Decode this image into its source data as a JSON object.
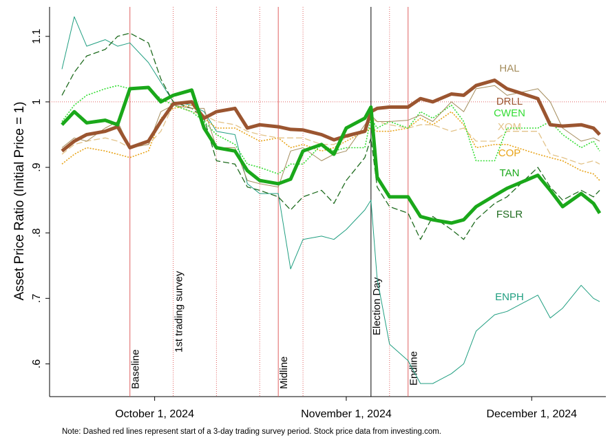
{
  "chart_data": {
    "type": "line",
    "y_label": "Asset Price Ratio (Initial Price = 1)",
    "note": "Note: Dashed red lines represent start of a 3-day trading survey period. Stock price data from investing.com.",
    "x": [
      "2024-09-16",
      "2024-09-18",
      "2024-09-20",
      "2024-09-23",
      "2024-09-25",
      "2024-09-27",
      "2024-09-30",
      "2024-10-02",
      "2024-10-04",
      "2024-10-07",
      "2024-10-09",
      "2024-10-11",
      "2024-10-14",
      "2024-10-16",
      "2024-10-18",
      "2024-10-21",
      "2024-10-23",
      "2024-10-25",
      "2024-10-28",
      "2024-10-30",
      "2024-11-01",
      "2024-11-04",
      "2024-11-05",
      "2024-11-06",
      "2024-11-08",
      "2024-11-11",
      "2024-11-13",
      "2024-11-15",
      "2024-11-18",
      "2024-11-20",
      "2024-11-22",
      "2024-11-25",
      "2024-11-27",
      "2024-12-02",
      "2024-12-04",
      "2024-12-06",
      "2024-12-09",
      "2024-12-11",
      "2024-12-12"
    ],
    "xlim": [
      "2024-09-14",
      "2024-12-13"
    ],
    "xticks": [
      {
        "value": "2024-10-01",
        "label": "October 1, 2024"
      },
      {
        "value": "2024-11-01",
        "label": "November 1, 2024"
      },
      {
        "value": "2024-12-01",
        "label": "December 1, 2024"
      }
    ],
    "ylim": [
      0.55,
      1.145
    ],
    "yticks": [
      {
        "value": 0.6,
        "label": ".6"
      },
      {
        "value": 0.7,
        "label": ".7"
      },
      {
        "value": 0.8,
        "label": ".8"
      },
      {
        "value": 0.9,
        "label": ".9"
      },
      1,
      1.1
    ],
    "reference_line": {
      "value": 1,
      "color": "#e06060"
    },
    "events": [
      {
        "date": "2024-09-27",
        "label": "Baseline",
        "style": "solid",
        "color": "#e06060"
      },
      {
        "date": "2024-10-04",
        "label": "1st trading survey",
        "style": "dotted",
        "color": "#e06060"
      },
      {
        "date": "2024-10-11",
        "style": "dotted",
        "color": "#e06060"
      },
      {
        "date": "2024-10-18",
        "style": "dotted",
        "color": "#e06060"
      },
      {
        "date": "2024-10-21",
        "label": "Midline",
        "style": "solid",
        "color": "#e06060"
      },
      {
        "date": "2024-10-25",
        "style": "dotted",
        "color": "#e06060"
      },
      {
        "date": "2024-11-05",
        "label": "Election Day",
        "style": "solid",
        "color": "#000000"
      },
      {
        "date": "2024-11-08",
        "style": "dotted",
        "color": "#e06060"
      },
      {
        "date": "2024-11-11",
        "label": "Endline",
        "style": "solid",
        "color": "#e06060"
      }
    ],
    "series": [
      {
        "name": "ENPH",
        "color": "#1f9e80",
        "style": "solid",
        "values": [
          1.05,
          1.13,
          1.085,
          1.095,
          1.085,
          1.09,
          1.06,
          1.03,
          1.0,
          0.995,
          0.985,
          0.955,
          0.95,
          0.875,
          0.86,
          0.86,
          0.745,
          0.79,
          0.795,
          0.79,
          0.805,
          0.835,
          0.85,
          0.73,
          0.63,
          0.605,
          0.57,
          0.57,
          0.585,
          0.6,
          0.65,
          0.675,
          0.68,
          0.705,
          0.67,
          0.685,
          0.72,
          0.7,
          0.695
        ]
      },
      {
        "name": "FSLR",
        "color": "#1e6b1e",
        "style": "dashed",
        "values": [
          1.01,
          1.045,
          1.07,
          1.08,
          1.1,
          1.105,
          1.09,
          1.035,
          1.0,
          0.99,
          0.975,
          0.91,
          0.905,
          0.87,
          0.865,
          0.855,
          0.835,
          0.855,
          0.865,
          0.845,
          0.88,
          0.915,
          0.945,
          0.87,
          0.84,
          0.83,
          0.79,
          0.825,
          0.805,
          0.79,
          0.82,
          0.845,
          0.855,
          0.9,
          0.87,
          0.85,
          0.865,
          0.855,
          0.865
        ]
      },
      {
        "name": "COP",
        "color": "#e8a317",
        "style": "dotted",
        "values": [
          0.905,
          0.92,
          0.93,
          0.925,
          0.92,
          0.915,
          0.925,
          0.975,
          0.99,
          0.995,
          0.975,
          0.96,
          0.96,
          0.95,
          0.94,
          0.945,
          0.93,
          0.935,
          0.925,
          0.93,
          0.94,
          0.955,
          0.96,
          0.955,
          0.955,
          0.96,
          0.975,
          0.965,
          0.985,
          0.965,
          0.93,
          0.935,
          0.935,
          0.92,
          0.915,
          0.91,
          0.895,
          0.89,
          0.88
        ]
      },
      {
        "name": "XOM",
        "color": "#e3c389",
        "style": "dashed",
        "values": [
          0.92,
          0.935,
          0.94,
          0.945,
          0.94,
          0.93,
          0.935,
          0.955,
          0.995,
          0.985,
          0.98,
          0.97,
          0.965,
          0.955,
          0.95,
          0.945,
          0.945,
          0.945,
          0.935,
          0.935,
          0.945,
          0.955,
          0.975,
          0.97,
          0.965,
          0.96,
          0.965,
          0.965,
          0.955,
          0.96,
          0.94,
          0.94,
          0.955,
          0.955,
          0.92,
          0.915,
          0.905,
          0.91,
          0.905
        ]
      },
      {
        "name": "CWEN",
        "color": "#33dd33",
        "style": "dotted",
        "values": [
          0.97,
          0.995,
          1.01,
          1.02,
          1.025,
          1.02,
          1.02,
          1.005,
          0.995,
          0.985,
          0.97,
          0.95,
          0.935,
          0.905,
          0.9,
          0.89,
          0.905,
          0.905,
          0.935,
          0.925,
          0.93,
          0.93,
          0.975,
          0.96,
          0.97,
          0.96,
          0.985,
          0.975,
          0.995,
          0.97,
          0.91,
          0.91,
          0.96,
          0.96,
          0.97,
          0.95,
          0.93,
          0.94,
          0.925
        ]
      },
      {
        "name": "HAL",
        "color": "#a48c5c",
        "style": "solid",
        "values": [
          0.93,
          0.945,
          0.94,
          0.96,
          0.97,
          0.93,
          0.935,
          0.985,
          0.995,
          0.99,
          0.99,
          0.93,
          0.93,
          0.88,
          0.875,
          0.87,
          0.925,
          0.93,
          0.91,
          0.92,
          0.925,
          0.965,
          0.98,
          0.97,
          0.97,
          0.972,
          0.98,
          0.97,
          1.0,
          0.985,
          1.02,
          1.025,
          1.01,
          1.02,
          1.0,
          0.96,
          0.94,
          0.945,
          0.94
        ]
      },
      {
        "name": "DRLL",
        "color": "#9b5530",
        "style": "thick",
        "values": [
          0.925,
          0.94,
          0.95,
          0.955,
          0.962,
          0.93,
          0.94,
          0.97,
          0.997,
          1.0,
          0.975,
          0.985,
          0.99,
          0.96,
          0.965,
          0.962,
          0.958,
          0.957,
          0.95,
          0.942,
          0.948,
          0.955,
          0.985,
          0.99,
          0.992,
          0.992,
          1.005,
          1.0,
          1.012,
          1.01,
          1.025,
          1.033,
          1.02,
          1.005,
          0.965,
          0.963,
          0.965,
          0.96,
          0.95
        ]
      },
      {
        "name": "TAN",
        "color": "#1aa81a",
        "style": "thick",
        "values": [
          0.965,
          0.985,
          0.968,
          0.972,
          0.965,
          1.02,
          1.022,
          1.0,
          1.01,
          1.018,
          0.96,
          0.93,
          0.925,
          0.895,
          0.88,
          0.875,
          0.882,
          0.925,
          0.935,
          0.92,
          0.96,
          0.975,
          0.992,
          0.885,
          0.855,
          0.855,
          0.825,
          0.82,
          0.815,
          0.82,
          0.84,
          0.857,
          0.868,
          0.888,
          0.865,
          0.84,
          0.86,
          0.845,
          0.83
        ]
      }
    ]
  }
}
